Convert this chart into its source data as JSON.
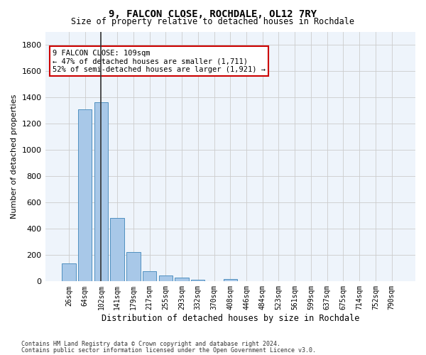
{
  "title1": "9, FALCON CLOSE, ROCHDALE, OL12 7RY",
  "title2": "Size of property relative to detached houses in Rochdale",
  "xlabel": "Distribution of detached houses by size in Rochdale",
  "ylabel": "Number of detached properties",
  "footnote1": "Contains HM Land Registry data © Crown copyright and database right 2024.",
  "footnote2": "Contains public sector information licensed under the Open Government Licence v3.0.",
  "categories": [
    "26sqm",
    "64sqm",
    "102sqm",
    "141sqm",
    "179sqm",
    "217sqm",
    "255sqm",
    "293sqm",
    "332sqm",
    "370sqm",
    "408sqm",
    "446sqm",
    "484sqm",
    "523sqm",
    "561sqm",
    "599sqm",
    "637sqm",
    "675sqm",
    "714sqm",
    "752sqm",
    "790sqm"
  ],
  "values": [
    135,
    1310,
    1365,
    485,
    225,
    75,
    45,
    28,
    15,
    0,
    20,
    0,
    0,
    0,
    0,
    0,
    0,
    0,
    0,
    0,
    0
  ],
  "bar_color": "#a8c8e8",
  "bar_edge_color": "#5090c0",
  "highlight_bar_index": 2,
  "highlight_line_color": "#333333",
  "vline_x": 2,
  "annotation_text": "9 FALCON CLOSE: 109sqm\n← 47% of detached houses are smaller (1,711)\n52% of semi-detached houses are larger (1,921) →",
  "annotation_box_color": "#ffffff",
  "annotation_box_edge": "#cc0000",
  "ylim": [
    0,
    1900
  ],
  "yticks": [
    0,
    200,
    400,
    600,
    800,
    1000,
    1200,
    1400,
    1600,
    1800
  ],
  "background_color": "#ffffff",
  "grid_color": "#cccccc"
}
